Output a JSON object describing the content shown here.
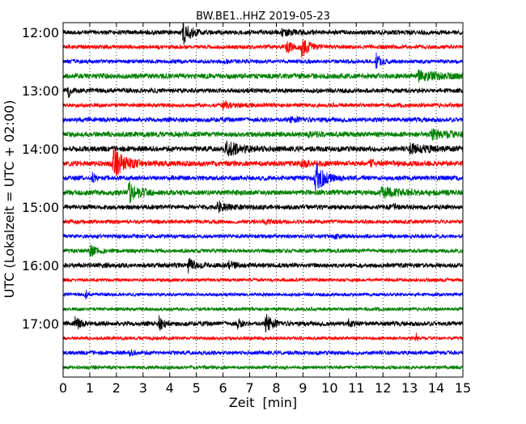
{
  "chart_data": {
    "type": "line",
    "title": "BW.BE1..HHZ 2019-05-23",
    "xlabel": "Zeit  [min]",
    "ylabel": "UTC (Lokalzeit = UTC + 02:00)",
    "xlim": [
      0,
      15
    ],
    "x_ticks": [
      0,
      1,
      2,
      3,
      4,
      5,
      6,
      7,
      8,
      9,
      10,
      11,
      12,
      13,
      14,
      15
    ],
    "x_tick_labels": [
      "0",
      "1",
      "2",
      "3",
      "4",
      "5",
      "6",
      "7",
      "8",
      "9",
      "10",
      "11",
      "12",
      "13",
      "14",
      "15"
    ],
    "y_tick_labels": [
      "12:00",
      "13:00",
      "14:00",
      "15:00",
      "16:00",
      "17:00"
    ],
    "trace_interval_minutes": 15,
    "grid": "vertical dotted lines at each minute",
    "colors": [
      "#000000",
      "#ff0000",
      "#0000ff",
      "#008000"
    ],
    "traces": [
      {
        "start": "12:00",
        "color": "#000000",
        "noise": 0.35,
        "events": [
          {
            "t": 4.5,
            "amp": 1.8,
            "dur": 0.5
          },
          {
            "t": 8.2,
            "amp": 0.5,
            "dur": 0.8
          }
        ]
      },
      {
        "start": "12:15",
        "color": "#ff0000",
        "noise": 0.3,
        "events": [
          {
            "t": 8.4,
            "amp": 1.0,
            "dur": 0.4
          },
          {
            "t": 8.95,
            "amp": 1.6,
            "dur": 0.5
          }
        ]
      },
      {
        "start": "12:30",
        "color": "#0000ff",
        "noise": 0.3,
        "events": [
          {
            "t": 11.75,
            "amp": 1.3,
            "dur": 0.3
          },
          {
            "t": 6.1,
            "amp": 0.4,
            "dur": 0.3
          }
        ]
      },
      {
        "start": "12:45",
        "color": "#008000",
        "noise": 0.4,
        "events": [
          {
            "t": 13.3,
            "amp": 0.7,
            "dur": 1.5
          }
        ]
      },
      {
        "start": "13:00",
        "color": "#000000",
        "noise": 0.35,
        "events": [
          {
            "t": 0.2,
            "amp": 0.9,
            "dur": 0.2
          }
        ]
      },
      {
        "start": "13:15",
        "color": "#ff0000",
        "noise": 0.3,
        "events": [
          {
            "t": 6.0,
            "amp": 0.5,
            "dur": 0.8
          }
        ]
      },
      {
        "start": "13:30",
        "color": "#0000ff",
        "noise": 0.35,
        "events": [
          {
            "t": 8.5,
            "amp": 0.3,
            "dur": 1.0
          }
        ]
      },
      {
        "start": "13:45",
        "color": "#008000",
        "noise": 0.4,
        "events": [
          {
            "t": 13.8,
            "amp": 0.6,
            "dur": 1.5
          },
          {
            "t": 9.2,
            "amp": 0.4,
            "dur": 0.5
          }
        ]
      },
      {
        "start": "14:00",
        "color": "#000000",
        "noise": 0.4,
        "events": [
          {
            "t": 6.1,
            "amp": 1.0,
            "dur": 1.2
          },
          {
            "t": 13.0,
            "amp": 0.6,
            "dur": 1.5
          }
        ]
      },
      {
        "start": "14:15",
        "color": "#ff0000",
        "noise": 0.4,
        "events": [
          {
            "t": 1.85,
            "amp": 2.2,
            "dur": 0.9
          },
          {
            "t": 8.9,
            "amp": 0.4,
            "dur": 1.0
          },
          {
            "t": 11.5,
            "amp": 0.4,
            "dur": 0.6
          }
        ]
      },
      {
        "start": "14:30",
        "color": "#0000ff",
        "noise": 0.35,
        "events": [
          {
            "t": 9.45,
            "amp": 2.5,
            "dur": 0.6
          },
          {
            "t": 1.1,
            "amp": 0.7,
            "dur": 0.2
          }
        ]
      },
      {
        "start": "14:45",
        "color": "#008000",
        "noise": 0.4,
        "events": [
          {
            "t": 2.45,
            "amp": 1.6,
            "dur": 0.7
          },
          {
            "t": 11.9,
            "amp": 0.7,
            "dur": 1.8
          }
        ]
      },
      {
        "start": "15:00",
        "color": "#000000",
        "noise": 0.35,
        "events": [
          {
            "t": 5.8,
            "amp": 0.9,
            "dur": 0.6
          },
          {
            "t": 12.4,
            "amp": 0.4,
            "dur": 0.2
          }
        ]
      },
      {
        "start": "15:15",
        "color": "#ff0000",
        "noise": 0.3,
        "events": [
          {
            "t": 7.5,
            "amp": 0.4,
            "dur": 0.7
          }
        ]
      },
      {
        "start": "15:30",
        "color": "#0000ff",
        "noise": 0.3,
        "events": [
          {
            "t": 10.2,
            "amp": 0.3,
            "dur": 0.3
          }
        ]
      },
      {
        "start": "15:45",
        "color": "#008000",
        "noise": 0.3,
        "events": [
          {
            "t": 1.0,
            "amp": 0.9,
            "dur": 0.4
          }
        ]
      },
      {
        "start": "16:00",
        "color": "#000000",
        "noise": 0.35,
        "events": [
          {
            "t": 4.7,
            "amp": 1.0,
            "dur": 0.5
          },
          {
            "t": 6.2,
            "amp": 0.5,
            "dur": 0.6
          }
        ]
      },
      {
        "start": "16:15",
        "color": "#ff0000",
        "noise": 0.25,
        "events": []
      },
      {
        "start": "16:30",
        "color": "#0000ff",
        "noise": 0.25,
        "events": [
          {
            "t": 0.85,
            "amp": 0.8,
            "dur": 0.1
          }
        ]
      },
      {
        "start": "16:45",
        "color": "#008000",
        "noise": 0.25,
        "events": []
      },
      {
        "start": "17:00",
        "color": "#000000",
        "noise": 0.35,
        "events": [
          {
            "t": 0.45,
            "amp": 1.2,
            "dur": 0.3
          },
          {
            "t": 3.6,
            "amp": 1.0,
            "dur": 0.3
          },
          {
            "t": 6.55,
            "amp": 0.9,
            "dur": 0.2
          },
          {
            "t": 7.6,
            "amp": 1.4,
            "dur": 0.5
          },
          {
            "t": 10.7,
            "amp": 0.6,
            "dur": 0.2
          }
        ]
      },
      {
        "start": "17:15",
        "color": "#ff0000",
        "noise": 0.25,
        "events": [
          {
            "t": 13.25,
            "amp": 0.7,
            "dur": 0.1
          }
        ]
      },
      {
        "start": "17:30",
        "color": "#0000ff",
        "noise": 0.3,
        "events": [
          {
            "t": 2.5,
            "amp": 0.3,
            "dur": 0.5
          }
        ]
      },
      {
        "start": "17:45",
        "color": "#008000",
        "noise": 0.25,
        "events": []
      }
    ]
  }
}
